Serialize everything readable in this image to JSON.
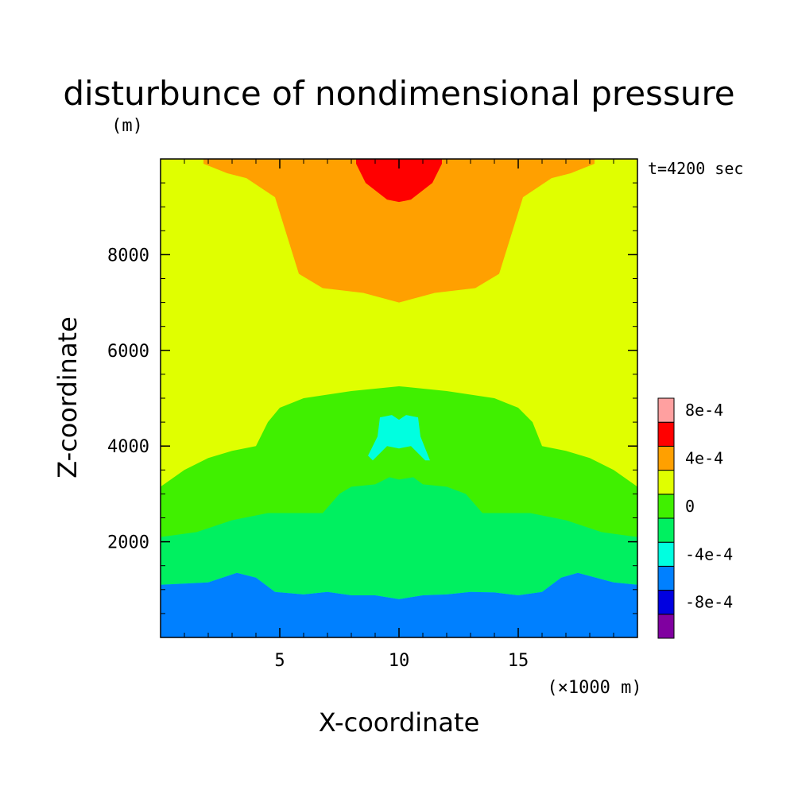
{
  "chart_data": {
    "type": "heatmap",
    "subtype": "filled-contour",
    "title": "disturbunce of nondimensional pressure",
    "units_label": "(m)",
    "time_label": "t=4200 sec",
    "xlabel": "X-coordinate",
    "ylabel": "Z-coordinate",
    "x_unit_label": "(×1000 m)",
    "xlim": [
      0,
      20
    ],
    "ylim": [
      0,
      10000
    ],
    "x_ticks": [
      {
        "value": 5,
        "label": "5"
      },
      {
        "value": 10,
        "label": "10"
      },
      {
        "value": 15,
        "label": "15"
      }
    ],
    "y_ticks": [
      {
        "value": 2000,
        "label": "2000"
      },
      {
        "value": 4000,
        "label": "4000"
      },
      {
        "value": 6000,
        "label": "6000"
      },
      {
        "value": 8000,
        "label": "8000"
      }
    ],
    "colorbar": {
      "levels": [
        {
          "label": "",
          "color": "#8000a0"
        },
        {
          "label": "-8e-4",
          "color": "#0000e0"
        },
        {
          "label": "",
          "color": "#0080ff"
        },
        {
          "label": "-4e-4",
          "color": "#00ffe0"
        },
        {
          "label": "",
          "color": "#00f060"
        },
        {
          "label": "0",
          "color": "#40f000"
        },
        {
          "label": "",
          "color": "#e0ff00"
        },
        {
          "label": "4e-4",
          "color": "#ffa000"
        },
        {
          "label": "",
          "color": "#ff0000"
        },
        {
          "label": "8e-4",
          "color": "#ffa0a0"
        }
      ]
    },
    "contour_boundaries": [
      {
        "level": "-4e-4",
        "points": [
          [
            0,
            1100
          ],
          [
            2,
            1150
          ],
          [
            3.2,
            1350
          ],
          [
            4,
            1250
          ],
          [
            4.8,
            950
          ],
          [
            6,
            900
          ],
          [
            7,
            950
          ],
          [
            8,
            880
          ],
          [
            9,
            880
          ],
          [
            10,
            800
          ],
          [
            11,
            880
          ],
          [
            12,
            900
          ],
          [
            13,
            950
          ],
          [
            14,
            940
          ],
          [
            15,
            880
          ],
          [
            16,
            950
          ],
          [
            16.8,
            1250
          ],
          [
            17.5,
            1350
          ],
          [
            19,
            1150
          ],
          [
            20,
            1100
          ]
        ]
      },
      {
        "level": "-2e-4",
        "points": [
          [
            0,
            2100
          ],
          [
            1.5,
            2200
          ],
          [
            3,
            2450
          ],
          [
            4.5,
            2600
          ],
          [
            6.8,
            2600
          ],
          [
            7.5,
            3000
          ],
          [
            8,
            3150
          ],
          [
            9,
            3200
          ],
          [
            9.6,
            3350
          ],
          [
            10,
            3300
          ],
          [
            10.6,
            3350
          ],
          [
            11,
            3200
          ],
          [
            12,
            3150
          ],
          [
            12.8,
            3000
          ],
          [
            13.5,
            2600
          ],
          [
            15.5,
            2600
          ],
          [
            17,
            2450
          ],
          [
            18.5,
            2200
          ],
          [
            20,
            2100
          ]
        ]
      },
      {
        "level": "0",
        "points": [
          [
            0,
            3150
          ],
          [
            1,
            3500
          ],
          [
            2,
            3750
          ],
          [
            3,
            3900
          ],
          [
            4,
            4000
          ],
          [
            4.5,
            4500
          ],
          [
            5,
            4800
          ],
          [
            6,
            5000
          ],
          [
            8,
            5150
          ],
          [
            10,
            5250
          ],
          [
            12,
            5150
          ],
          [
            14,
            5000
          ],
          [
            15,
            4800
          ],
          [
            15.6,
            4500
          ],
          [
            16,
            4000
          ],
          [
            17,
            3900
          ],
          [
            18,
            3750
          ],
          [
            19,
            3500
          ],
          [
            20,
            3150
          ]
        ]
      },
      {
        "level": "2e-4",
        "points": [
          [
            0,
            6850
          ],
          [
            2,
            6850
          ],
          [
            3,
            6600
          ],
          [
            4.5,
            6200
          ],
          [
            6,
            6100
          ],
          [
            8,
            6100
          ],
          [
            10,
            6100
          ],
          [
            12,
            6100
          ],
          [
            14,
            6100
          ],
          [
            15.5,
            6200
          ],
          [
            17,
            6600
          ],
          [
            18,
            6850
          ],
          [
            20,
            6850
          ]
        ]
      },
      {
        "level": "4e-4",
        "points": [
          [
            1.8,
            9900
          ],
          [
            2.8,
            9700
          ],
          [
            3.6,
            9600
          ],
          [
            4.8,
            9200
          ],
          [
            5.3,
            8400
          ],
          [
            5.8,
            7600
          ],
          [
            6.8,
            7300
          ],
          [
            8.5,
            7200
          ],
          [
            10,
            7000
          ],
          [
            11.5,
            7200
          ],
          [
            13.2,
            7300
          ],
          [
            14.2,
            7600
          ],
          [
            14.7,
            8400
          ],
          [
            15.2,
            9200
          ],
          [
            16.4,
            9600
          ],
          [
            17.2,
            9700
          ],
          [
            18.2,
            9900
          ]
        ]
      },
      {
        "level": "6e-4",
        "points": [
          [
            8.2,
            9900
          ],
          [
            8.6,
            9500
          ],
          [
            9.5,
            9150
          ],
          [
            10,
            9100
          ],
          [
            10.5,
            9150
          ],
          [
            11.4,
            9500
          ],
          [
            11.8,
            9900
          ]
        ]
      },
      {
        "level": "-2e-4 (island)",
        "points": [
          [
            9.2,
            4600
          ],
          [
            9.7,
            4650
          ],
          [
            10,
            4550
          ],
          [
            10.3,
            4650
          ],
          [
            10.8,
            4600
          ],
          [
            10.9,
            4200
          ],
          [
            11.3,
            3700
          ],
          [
            11.1,
            3700
          ],
          [
            10.5,
            4000
          ],
          [
            10,
            3950
          ],
          [
            9.5,
            4000
          ],
          [
            8.9,
            3700
          ],
          [
            8.7,
            3800
          ],
          [
            9.1,
            4200
          ]
        ]
      }
    ]
  }
}
